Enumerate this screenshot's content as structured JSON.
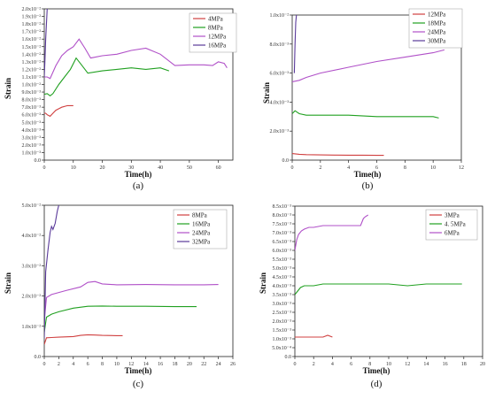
{
  "chart_data": [
    {
      "type": "line",
      "panel_label": "(a)",
      "xlabel": "Time(h)",
      "ylabel": "Strain",
      "xlim": [
        0,
        65
      ],
      "ylim": [
        0,
        0.02
      ],
      "xticks": [
        0,
        10,
        20,
        30,
        40,
        50,
        60
      ],
      "xtick_labels": [
        "0",
        "10",
        "20",
        "30",
        "40",
        "50",
        "60"
      ],
      "yticks": [
        0,
        0.001,
        0.002,
        0.003,
        0.004,
        0.005,
        0.006,
        0.007,
        0.008,
        0.009,
        0.01,
        0.011,
        0.012,
        0.013,
        0.014,
        0.015,
        0.016,
        0.017,
        0.018,
        0.019,
        0.02
      ],
      "ytick_labels": [
        "0.0",
        "1.0x10⁻³",
        "2.0x10⁻³",
        "3.0x10⁻³",
        "4.0x10⁻³",
        "5.0x10⁻³",
        "6.0x10⁻³",
        "7.0x10⁻³",
        "8.0x10⁻³",
        "9.0x10⁻³",
        "1.0x10⁻²",
        "1.1x10⁻²",
        "1.2x10⁻²",
        "1.3x10⁻²",
        "1.4x10⁻²",
        "1.5x10⁻²",
        "1.6x10⁻²",
        "1.7x10⁻²",
        "1.8x10⁻²",
        "1.9x10⁻²",
        "2.0x10⁻²"
      ],
      "legend_position": "top-right",
      "series": [
        {
          "name": "4MPa",
          "color": "#d04040",
          "x": [
            0,
            0.5,
            1,
            2,
            3,
            4,
            5,
            6,
            8,
            10
          ],
          "y": [
            0.0062,
            0.0062,
            0.006,
            0.0058,
            0.0062,
            0.0066,
            0.0068,
            0.007,
            0.0072,
            0.0072
          ]
        },
        {
          "name": "8MPa",
          "color": "#20a020",
          "x": [
            0,
            1,
            2,
            3,
            5,
            7,
            9,
            11,
            13,
            15,
            20,
            25,
            30,
            35,
            40,
            43
          ],
          "y": [
            0.0087,
            0.0088,
            0.0085,
            0.0088,
            0.01,
            0.011,
            0.012,
            0.0135,
            0.0125,
            0.0115,
            0.0118,
            0.012,
            0.0122,
            0.012,
            0.0122,
            0.0118
          ]
        },
        {
          "name": "12MPa",
          "color": "#b050c8",
          "x": [
            0,
            1,
            2,
            4,
            6,
            8,
            10,
            12,
            14,
            16,
            20,
            25,
            30,
            35,
            40,
            45,
            50,
            55,
            58,
            60,
            62,
            63
          ],
          "y": [
            0.011,
            0.011,
            0.0108,
            0.0125,
            0.0138,
            0.0145,
            0.015,
            0.016,
            0.0148,
            0.0135,
            0.0138,
            0.014,
            0.0145,
            0.0148,
            0.014,
            0.0125,
            0.0126,
            0.0126,
            0.0125,
            0.013,
            0.0128,
            0.0122
          ]
        },
        {
          "name": "16MPa",
          "color": "#5a3a9a",
          "x": [
            0,
            0.2,
            0.5,
            1.0
          ],
          "y": [
            0.011,
            0.013,
            0.016,
            0.02
          ]
        }
      ]
    },
    {
      "type": "line",
      "panel_label": "(b)",
      "xlabel": "Time(h)",
      "ylabel": "Strain",
      "xlim": [
        0,
        12
      ],
      "ylim": [
        0,
        0.01
      ],
      "xticks": [
        0,
        2,
        4,
        6,
        8,
        10,
        12
      ],
      "xtick_labels": [
        "0",
        "2",
        "4",
        "6",
        "8",
        "10",
        "12"
      ],
      "yticks": [
        0,
        0.002,
        0.004,
        0.006,
        0.008,
        0.01
      ],
      "ytick_labels": [
        "0.0",
        "2.0x10⁻³",
        "4.0x10⁻³",
        "6.0x10⁻³",
        "8.0x10⁻³",
        "1.0x10⁻²"
      ],
      "legend_position": "top-right",
      "series": [
        {
          "name": "12MPa",
          "color": "#d04040",
          "x": [
            0,
            0.5,
            1,
            2,
            3,
            4,
            5,
            6,
            6.5
          ],
          "y": [
            0.00045,
            0.0004,
            0.00038,
            0.00036,
            0.00035,
            0.00034,
            0.00034,
            0.00033,
            0.00033
          ]
        },
        {
          "name": "18MPa",
          "color": "#20a020",
          "x": [
            0,
            0.2,
            0.5,
            1,
            2,
            4,
            6,
            8,
            10,
            10.4
          ],
          "y": [
            0.0032,
            0.0034,
            0.0032,
            0.0031,
            0.0031,
            0.0031,
            0.003,
            0.003,
            0.003,
            0.0029
          ]
        },
        {
          "name": "24MPa",
          "color": "#b050c8",
          "x": [
            0,
            0.5,
            1,
            2,
            4,
            6,
            8,
            10,
            10.8
          ],
          "y": [
            0.0054,
            0.0055,
            0.0057,
            0.006,
            0.0064,
            0.0068,
            0.0071,
            0.0074,
            0.0076
          ]
        },
        {
          "name": "30MPa",
          "color": "#5a3a9a",
          "x": [
            0.15,
            0.2,
            0.25,
            0.3
          ],
          "y": [
            0.006,
            0.008,
            0.0095,
            0.01
          ]
        }
      ]
    },
    {
      "type": "line",
      "panel_label": "(c)",
      "xlabel": "Time(h)",
      "ylabel": "Strain",
      "xlim": [
        0,
        26
      ],
      "ylim": [
        0,
        0.05
      ],
      "xticks": [
        0,
        2,
        4,
        6,
        8,
        10,
        12,
        14,
        16,
        18,
        20,
        22,
        24,
        26
      ],
      "xtick_labels": [
        "0",
        "2",
        "4",
        "6",
        "8",
        "10",
        "12",
        "14",
        "16",
        "18",
        "20",
        "22",
        "24",
        "26"
      ],
      "yticks": [
        0,
        0.01,
        0.02,
        0.03,
        0.04,
        0.05
      ],
      "ytick_labels": [
        "0.0",
        "1.0x10⁻²",
        "2.0x10⁻²",
        "3.0x10⁻²",
        "4.0x10⁻²",
        "5.0x10⁻²"
      ],
      "legend_position": "top-right",
      "series": [
        {
          "name": "8MPa",
          "color": "#d04040",
          "x": [
            0,
            0.3,
            1,
            2,
            4,
            5,
            6,
            7,
            8,
            10,
            10.8
          ],
          "y": [
            0.004,
            0.0062,
            0.0063,
            0.0064,
            0.0066,
            0.007,
            0.0072,
            0.0071,
            0.007,
            0.0069,
            0.0069
          ]
        },
        {
          "name": "16MPa",
          "color": "#20a020",
          "x": [
            0,
            0.3,
            1,
            2,
            4,
            6,
            8,
            10,
            14,
            18,
            21
          ],
          "y": [
            0.008,
            0.013,
            0.014,
            0.0148,
            0.016,
            0.0166,
            0.0167,
            0.0166,
            0.0166,
            0.0165,
            0.0165
          ]
        },
        {
          "name": "24MPa",
          "color": "#b050c8",
          "x": [
            0,
            0.3,
            1,
            3,
            5,
            6,
            7,
            8,
            10,
            14,
            18,
            22,
            24
          ],
          "y": [
            0.012,
            0.0195,
            0.0205,
            0.0218,
            0.023,
            0.0245,
            0.0248,
            0.024,
            0.0237,
            0.0238,
            0.0237,
            0.0237,
            0.0238
          ]
        },
        {
          "name": "32MPa",
          "color": "#5a3a9a",
          "x": [
            0,
            0.2,
            0.5,
            0.8,
            1.0,
            1.2,
            1.5,
            1.8,
            2.0
          ],
          "y": [
            0.006,
            0.028,
            0.035,
            0.041,
            0.043,
            0.042,
            0.044,
            0.048,
            0.05
          ]
        }
      ]
    },
    {
      "type": "line",
      "panel_label": "(d)",
      "xlabel": "Time(h)",
      "ylabel": "Strain",
      "xlim": [
        0,
        20
      ],
      "ylim": [
        0,
        0.0085
      ],
      "xticks": [
        0,
        2,
        4,
        6,
        8,
        10,
        12,
        14,
        16,
        18,
        20
      ],
      "xtick_labels": [
        "0",
        "2",
        "4",
        "6",
        "8",
        "10",
        "12",
        "14",
        "16",
        "18",
        "20"
      ],
      "yticks": [
        0,
        0.0005,
        0.001,
        0.0015,
        0.002,
        0.0025,
        0.003,
        0.0035,
        0.004,
        0.0045,
        0.005,
        0.0055,
        0.006,
        0.0065,
        0.007,
        0.0075,
        0.008,
        0.0085
      ],
      "ytick_labels": [
        "0.0",
        "5.0x10⁻⁴",
        "1.0x10⁻³",
        "1.5x10⁻³",
        "2.0x10⁻³",
        "2.5x10⁻³",
        "3.0x10⁻³",
        "3.5x10⁻³",
        "4.0x10⁻³",
        "4.5x10⁻³",
        "5.0x10⁻³",
        "5.5x10⁻³",
        "6.0x10⁻³",
        "6.5x10⁻³",
        "7.0x10⁻³",
        "7.5x10⁻³",
        "8.0x10⁻³",
        "8.5x10⁻³"
      ],
      "legend_position": "top-right",
      "series": [
        {
          "name": "3MPa",
          "color": "#d04040",
          "x": [
            0,
            0.5,
            1,
            2,
            3,
            3.5,
            4
          ],
          "y": [
            0.0011,
            0.0011,
            0.0011,
            0.0011,
            0.0011,
            0.0012,
            0.0011
          ]
        },
        {
          "name": "4. 5MPa",
          "color": "#20a020",
          "x": [
            0,
            0.3,
            0.6,
            1,
            2,
            3,
            4,
            6,
            8,
            10,
            12,
            14,
            16,
            17.8
          ],
          "y": [
            0.0035,
            0.0037,
            0.0039,
            0.004,
            0.004,
            0.0041,
            0.0041,
            0.0041,
            0.0041,
            0.0041,
            0.004,
            0.0041,
            0.0041,
            0.0041
          ]
        },
        {
          "name": "6MPa",
          "color": "#b050c8",
          "x": [
            0,
            0.2,
            0.4,
            0.7,
            1,
            1.5,
            2,
            3,
            4,
            5,
            6,
            7,
            7.3,
            7.5,
            7.8
          ],
          "y": [
            0.006,
            0.0066,
            0.0069,
            0.0071,
            0.0072,
            0.0073,
            0.0073,
            0.0074,
            0.0074,
            0.0074,
            0.0074,
            0.0074,
            0.0078,
            0.0079,
            0.008
          ]
        }
      ]
    }
  ]
}
